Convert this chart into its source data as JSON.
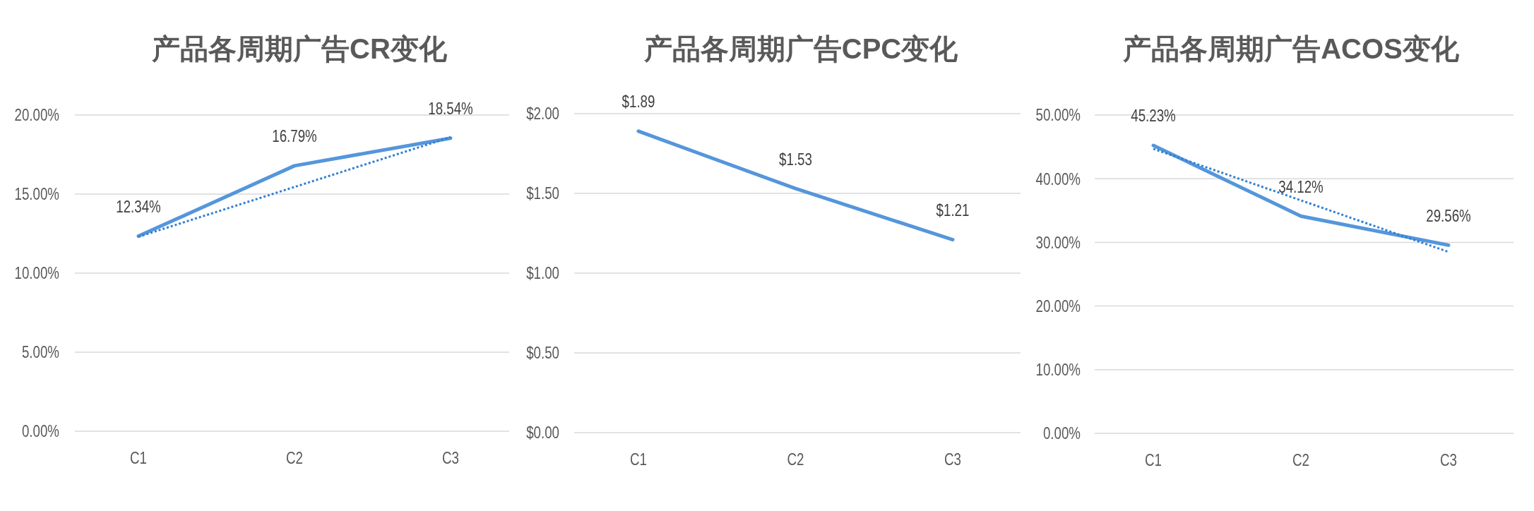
{
  "chart_data": [
    {
      "type": "line",
      "title": "产品各周期广告CR变化",
      "categories": [
        "C1",
        "C2",
        "C3"
      ],
      "series": [
        {
          "color": "#5596db",
          "values": [
            12.34,
            16.79,
            18.54
          ],
          "value_labels": [
            "12.34%",
            "16.79%",
            "18.54%"
          ]
        },
        {
          "type": "line",
          "x": [
            "C1",
            "C3"
          ],
          "values": [
            12.3,
            18.6
          ],
          "color": "#2f7fd3",
          "line_style": "dotted"
        }
      ],
      "ylim": [
        0,
        20
      ],
      "yticks": [
        {
          "value": 0,
          "label": "0.00%"
        },
        {
          "value": 5,
          "label": "5.00%"
        },
        {
          "value": 10,
          "label": "10.00%"
        },
        {
          "value": 15,
          "label": "15.00%"
        },
        {
          "value": 20,
          "label": "20.00%"
        }
      ],
      "grid": "y"
    },
    {
      "type": "line",
      "title": "产品各周期广告CPC变化",
      "categories": [
        "C1",
        "C2",
        "C3"
      ],
      "series": [
        {
          "color": "#5596db",
          "values": [
            1.89,
            1.53,
            1.21
          ],
          "value_labels": [
            "$1.89",
            "$1.53",
            "$1.21"
          ]
        }
      ],
      "ylim": [
        0,
        2
      ],
      "yticks": [
        {
          "value": 0,
          "label": "$0.00"
        },
        {
          "value": 0.5,
          "label": "$0.50"
        },
        {
          "value": 1,
          "label": "$1.00"
        },
        {
          "value": 1.5,
          "label": "$1.50"
        },
        {
          "value": 2,
          "label": "$2.00"
        }
      ],
      "grid": "y"
    },
    {
      "type": "line",
      "title": "产品各周期广告ACOS变化",
      "categories": [
        "C1",
        "C2",
        "C3"
      ],
      "series": [
        {
          "color": "#5596db",
          "values": [
            45.23,
            34.12,
            29.56
          ],
          "value_labels": [
            "45.23%",
            "34.12%",
            "29.56%"
          ]
        },
        {
          "type": "line",
          "x": [
            "C1",
            "C3"
          ],
          "values": [
            44.7,
            28.5
          ],
          "color": "#2f7fd3",
          "line_style": "dotted"
        }
      ],
      "ylim": [
        0,
        50
      ],
      "yticks": [
        {
          "value": 0,
          "label": "0.00%"
        },
        {
          "value": 10,
          "label": "10.00%"
        },
        {
          "value": 20,
          "label": "20.00%"
        },
        {
          "value": 30,
          "label": "30.00%"
        },
        {
          "value": 40,
          "label": "40.00%"
        },
        {
          "value": 50,
          "label": "50.00%"
        }
      ],
      "grid": "y"
    }
  ]
}
